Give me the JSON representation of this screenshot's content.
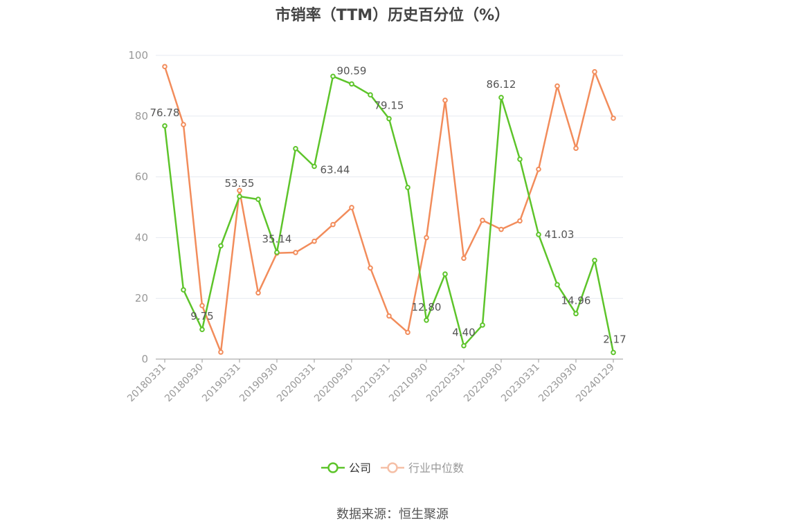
{
  "title": "市销率（TTM）历史百分位（%）",
  "source": "数据来源：恒生聚源",
  "colors": {
    "company": "#5dc42a",
    "industry": "#f28c5b",
    "legend_inactive": "#f5bfa6",
    "axis": "#999999",
    "grid": "#e6e9f0"
  },
  "chart_data": {
    "type": "line",
    "title": "市销率（TTM）历史百分位（%）",
    "xlabel": "",
    "ylabel": "",
    "ylim": [
      0,
      100
    ],
    "yticks": [
      0,
      20,
      40,
      60,
      80,
      100
    ],
    "grid": true,
    "legend_position": "bottom-center",
    "x": [
      "20180331",
      "20180630",
      "20180930",
      "20181231",
      "20190331",
      "20190630",
      "20190930",
      "20191231",
      "20200331",
      "20200630",
      "20200930",
      "20201231",
      "20210331",
      "20210630",
      "20210930",
      "20211231",
      "20220331",
      "20220630",
      "20220930",
      "20221231",
      "20230331",
      "20230630",
      "20230930",
      "20231231",
      "20240129"
    ],
    "xtick_labels": [
      "20180331",
      "20180930",
      "20190331",
      "20190930",
      "20200331",
      "20200930",
      "20210331",
      "20210930",
      "20220331",
      "20220930",
      "20230331",
      "20230930",
      "20240129"
    ],
    "series": [
      {
        "name": "公司",
        "values": [
          76.78,
          22.8,
          9.75,
          37.3,
          53.55,
          52.6,
          35.14,
          69.3,
          63.44,
          93.1,
          90.59,
          87.0,
          79.15,
          56.5,
          12.8,
          28.0,
          4.4,
          11.2,
          86.12,
          65.8,
          41.03,
          24.5,
          14.96,
          32.5,
          2.17
        ],
        "labels": {
          "0": "76.78",
          "2": "9.75",
          "4": "53.55",
          "6": "35.14",
          "8": "63.44",
          "10": "90.59",
          "12": "79.15",
          "14": "12.80",
          "16": "4.40",
          "18": "86.12",
          "20": "41.03",
          "22": "14.96",
          "24": "2.17"
        }
      },
      {
        "name": "行业中位数",
        "values": [
          96.3,
          77.2,
          17.6,
          2.3,
          55.5,
          21.8,
          34.9,
          35.1,
          38.8,
          44.3,
          49.9,
          30.0,
          14.2,
          8.8,
          40.0,
          85.2,
          33.2,
          45.7,
          42.7,
          45.5,
          62.5,
          89.9,
          69.4,
          94.6,
          79.3
        ]
      }
    ]
  }
}
